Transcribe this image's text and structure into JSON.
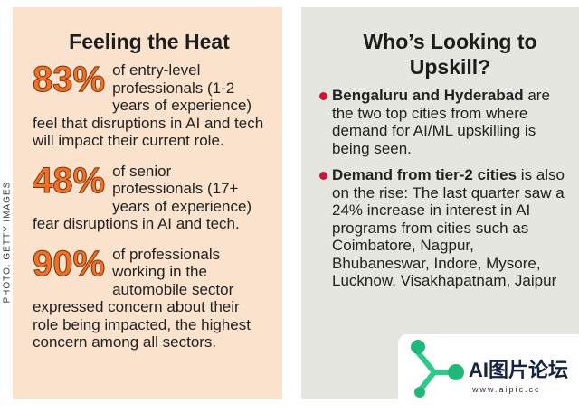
{
  "credit": "PHOTO: GETTY IMAGES",
  "left": {
    "title": "Feeling the Heat",
    "stats": [
      {
        "figure": "83%",
        "text": "of entry-level professionals (1-2 years of experience) feel that disruptions in AI and tech will impact their current role."
      },
      {
        "figure": "48%",
        "text": "of senior professionals (17+ years of experience) fear disruptions in AI and tech."
      },
      {
        "figure": "90%",
        "text": "of professionals working in the automobile sector expressed concern about their role being impacted, the highest concern among all sectors."
      }
    ]
  },
  "right": {
    "title": "Who’s Looking to Upskill?",
    "bullets": [
      {
        "lead": "Bengaluru and Hyderabad",
        "text": "are the two top cities from where demand for AI/ML upskilling is being seen."
      },
      {
        "lead": "Demand from tier-2 cities",
        "text": "is also on the rise: The last quarter saw a 24% increase in interest in AI programs from cities such as Coimbatore, Nagpur, Bhubaneswar, Indore, Mysore, Lucknow, Visakhapatnam, Jaipur"
      }
    ]
  },
  "watermark": {
    "name": "AI图片论坛",
    "url": "www.aipic.cc"
  }
}
